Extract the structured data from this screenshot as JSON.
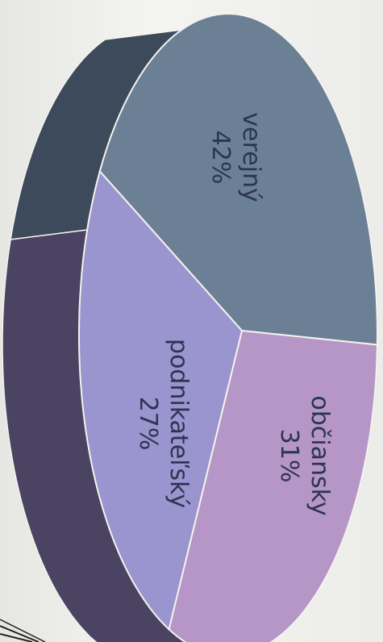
{
  "chart_data": {
    "type": "pie",
    "three_d": true,
    "title": "",
    "slices": [
      {
        "label": "verejný",
        "value": 42,
        "value_label": "42%",
        "color": "#6c8095"
      },
      {
        "label": "občiansky",
        "value": 31,
        "value_label": "31%",
        "color": "#b596c6"
      },
      {
        "label": "podnikateľský",
        "value": 27,
        "value_label": "27%",
        "color": "#9a94cf"
      }
    ],
    "side_colors": [
      "#3d4a5c",
      "#4a4462",
      "#34384c"
    ],
    "outline_color": "#f4f2ee"
  }
}
